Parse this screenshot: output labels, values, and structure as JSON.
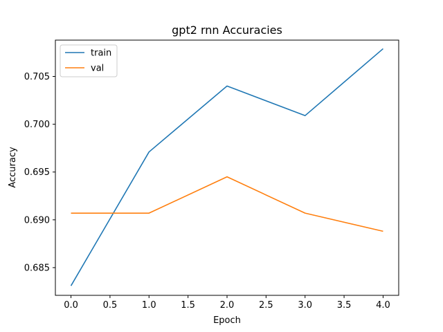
{
  "chart_data": {
    "type": "line",
    "title": "gpt2 rnn  Accuracies",
    "xlabel": "Epoch",
    "ylabel": "Accuracy",
    "x": [
      0,
      1,
      2,
      3,
      4
    ],
    "xticks": [
      "0.0",
      "0.5",
      "1.0",
      "1.5",
      "2.0",
      "2.5",
      "3.0",
      "3.5",
      "4.0"
    ],
    "yticks": [
      "0.685",
      "0.690",
      "0.695",
      "0.700",
      "0.705"
    ],
    "xlim": [
      -0.2,
      4.2
    ],
    "ylim": [
      0.6821,
      0.7088
    ],
    "grid": false,
    "legend_position": "upper left",
    "series": [
      {
        "name": "train",
        "color": "#1f77b4",
        "values": [
          0.6831,
          0.6971,
          0.704,
          0.7009,
          0.7079
        ]
      },
      {
        "name": "val",
        "color": "#ff7f0e",
        "values": [
          0.6907,
          0.6907,
          0.6945,
          0.6907,
          0.6888
        ]
      }
    ]
  }
}
